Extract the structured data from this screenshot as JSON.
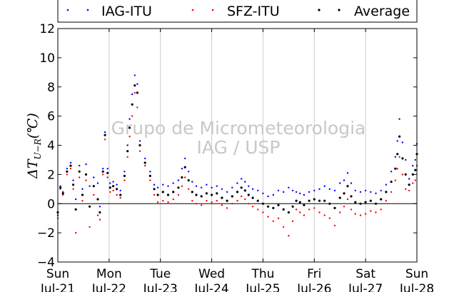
{
  "chart_data": {
    "type": "scatter",
    "ylabel": "ΔT_{U−R}(℃)",
    "ylabel_parts": {
      "delta": "ΔT",
      "subscript": "U−R",
      "unit": "(℃)"
    },
    "ylim": [
      -4,
      12
    ],
    "yticks": [
      -4,
      -2,
      0,
      2,
      4,
      6,
      8,
      10,
      12
    ],
    "ytick_labels": [
      "−4",
      "−2",
      "0",
      "2",
      "4",
      "6",
      "8",
      "10",
      "12"
    ],
    "xlim_days": [
      0,
      7
    ],
    "xticks": [
      {
        "day": "Sun",
        "date": "Jul-21"
      },
      {
        "day": "Mon",
        "date": "Jul-22"
      },
      {
        "day": "Tue",
        "date": "Jul-23"
      },
      {
        "day": "Wed",
        "date": "Jul-24"
      },
      {
        "day": "Thu",
        "date": "Jul-25"
      },
      {
        "day": "Fri",
        "date": "Jul-26"
      },
      {
        "day": "Sat",
        "date": "Jul-27"
      },
      {
        "day": "Sun",
        "date": "Jul-28"
      }
    ],
    "grid": "vertical",
    "zero_line": true,
    "legend_placement": "top",
    "watermark": [
      "Grupo de Micrometeorologia",
      "IAG / USP"
    ],
    "series": [
      {
        "name": "IAG-ITU",
        "color": "#0000ff",
        "points": [
          [
            0.0,
            -0.8
          ],
          [
            0.05,
            1.2
          ],
          [
            0.1,
            0.8
          ],
          [
            0.18,
            2.4
          ],
          [
            0.25,
            2.8
          ],
          [
            0.3,
            1.6
          ],
          [
            0.35,
            0.3
          ],
          [
            0.42,
            2.6
          ],
          [
            0.48,
            1.0
          ],
          [
            0.55,
            2.7
          ],
          [
            0.62,
            1.2
          ],
          [
            0.7,
            1.8
          ],
          [
            0.78,
            1.4
          ],
          [
            0.82,
            -0.2
          ],
          [
            0.88,
            2.4
          ],
          [
            0.92,
            4.9
          ],
          [
            0.97,
            2.4
          ],
          [
            1.02,
            1.4
          ],
          [
            1.08,
            1.5
          ],
          [
            1.15,
            1.3
          ],
          [
            1.22,
            0.9
          ],
          [
            1.3,
            2.2
          ],
          [
            1.36,
            4.0
          ],
          [
            1.4,
            5.8
          ],
          [
            1.45,
            7.5
          ],
          [
            1.5,
            8.8
          ],
          [
            1.55,
            8.2
          ],
          [
            1.6,
            4.3
          ],
          [
            1.7,
            3.1
          ],
          [
            1.8,
            2.2
          ],
          [
            1.88,
            1.3
          ],
          [
            1.95,
            1.1
          ],
          [
            2.05,
            1.3
          ],
          [
            2.15,
            1.2
          ],
          [
            2.25,
            1.4
          ],
          [
            2.35,
            1.6
          ],
          [
            2.42,
            2.4
          ],
          [
            2.48,
            3.1
          ],
          [
            2.55,
            2.2
          ],
          [
            2.62,
            1.5
          ],
          [
            2.7,
            1.2
          ],
          [
            2.8,
            1.1
          ],
          [
            2.9,
            1.3
          ],
          [
            3.0,
            1.1
          ],
          [
            3.1,
            1.2
          ],
          [
            3.2,
            1.0
          ],
          [
            3.3,
            0.8
          ],
          [
            3.4,
            1.1
          ],
          [
            3.5,
            1.4
          ],
          [
            3.58,
            1.7
          ],
          [
            3.65,
            1.5
          ],
          [
            3.72,
            1.2
          ],
          [
            3.8,
            1.0
          ],
          [
            3.9,
            0.9
          ],
          [
            4.0,
            0.7
          ],
          [
            4.1,
            0.5
          ],
          [
            4.2,
            0.6
          ],
          [
            4.3,
            0.9
          ],
          [
            4.4,
            0.8
          ],
          [
            4.5,
            1.1
          ],
          [
            4.58,
            0.9
          ],
          [
            4.65,
            0.8
          ],
          [
            4.72,
            0.7
          ],
          [
            4.8,
            0.6
          ],
          [
            4.9,
            0.8
          ],
          [
            5.0,
            0.9
          ],
          [
            5.1,
            1.0
          ],
          [
            5.2,
            1.2
          ],
          [
            5.3,
            1.0
          ],
          [
            5.4,
            0.9
          ],
          [
            5.5,
            1.4
          ],
          [
            5.58,
            1.6
          ],
          [
            5.65,
            2.1
          ],
          [
            5.72,
            1.4
          ],
          [
            5.8,
            0.9
          ],
          [
            5.9,
            0.8
          ],
          [
            6.0,
            0.9
          ],
          [
            6.1,
            0.8
          ],
          [
            6.2,
            0.7
          ],
          [
            6.3,
            0.9
          ],
          [
            6.4,
            1.3
          ],
          [
            6.5,
            2.2
          ],
          [
            6.58,
            3.2
          ],
          [
            6.62,
            4.3
          ],
          [
            6.66,
            5.8
          ],
          [
            6.72,
            4.2
          ],
          [
            6.78,
            3.0
          ],
          [
            6.85,
            1.7
          ],
          [
            6.92,
            2.6
          ],
          [
            6.97,
            3.0
          ],
          [
            7.0,
            4.1
          ]
        ]
      },
      {
        "name": "SFZ-ITU",
        "color": "#ff0000",
        "points": [
          [
            0.0,
            -1.0
          ],
          [
            0.05,
            1.0
          ],
          [
            0.1,
            0.6
          ],
          [
            0.18,
            2.0
          ],
          [
            0.25,
            2.4
          ],
          [
            0.3,
            1.0
          ],
          [
            0.35,
            -2.0
          ],
          [
            0.42,
            1.8
          ],
          [
            0.48,
            0.2
          ],
          [
            0.55,
            1.6
          ],
          [
            0.62,
            -1.6
          ],
          [
            0.7,
            0.6
          ],
          [
            0.78,
            -0.8
          ],
          [
            0.82,
            -1.1
          ],
          [
            0.88,
            2.0
          ],
          [
            0.92,
            4.4
          ],
          [
            0.97,
            1.8
          ],
          [
            1.02,
            0.8
          ],
          [
            1.08,
            0.9
          ],
          [
            1.15,
            0.6
          ],
          [
            1.22,
            0.4
          ],
          [
            1.3,
            1.6
          ],
          [
            1.36,
            3.2
          ],
          [
            1.4,
            4.6
          ],
          [
            1.45,
            6.0
          ],
          [
            1.5,
            7.6
          ],
          [
            1.55,
            6.6
          ],
          [
            1.6,
            3.6
          ],
          [
            1.7,
            2.6
          ],
          [
            1.8,
            1.6
          ],
          [
            1.88,
            0.6
          ],
          [
            1.95,
            0.1
          ],
          [
            2.05,
            0.2
          ],
          [
            2.15,
            0.1
          ],
          [
            2.25,
            0.3
          ],
          [
            2.35,
            0.6
          ],
          [
            2.42,
            1.2
          ],
          [
            2.48,
            1.8
          ],
          [
            2.55,
            1.0
          ],
          [
            2.62,
            0.2
          ],
          [
            2.7,
            0.0
          ],
          [
            2.8,
            -0.1
          ],
          [
            2.9,
            0.2
          ],
          [
            3.0,
            0.1
          ],
          [
            3.1,
            0.2
          ],
          [
            3.2,
            -0.1
          ],
          [
            3.3,
            -0.3
          ],
          [
            3.4,
            0.0
          ],
          [
            3.5,
            0.2
          ],
          [
            3.58,
            0.5
          ],
          [
            3.65,
            0.3
          ],
          [
            3.72,
            0.0
          ],
          [
            3.8,
            -0.2
          ],
          [
            3.9,
            -0.4
          ],
          [
            4.0,
            -0.6
          ],
          [
            4.1,
            -0.9
          ],
          [
            4.2,
            -1.2
          ],
          [
            4.3,
            -1.0
          ],
          [
            4.4,
            -1.6
          ],
          [
            4.5,
            -2.2
          ],
          [
            4.58,
            -1.2
          ],
          [
            4.65,
            -0.4
          ],
          [
            4.72,
            -0.6
          ],
          [
            4.8,
            -0.8
          ],
          [
            4.9,
            -0.4
          ],
          [
            5.0,
            -0.3
          ],
          [
            5.1,
            -0.6
          ],
          [
            5.2,
            -0.8
          ],
          [
            5.3,
            -1.0
          ],
          [
            5.4,
            -1.5
          ],
          [
            5.5,
            -0.6
          ],
          [
            5.58,
            -0.2
          ],
          [
            5.65,
            0.3
          ],
          [
            5.72,
            -0.4
          ],
          [
            5.8,
            -0.7
          ],
          [
            5.9,
            -0.8
          ],
          [
            6.0,
            -0.7
          ],
          [
            6.1,
            -0.5
          ],
          [
            6.2,
            -0.6
          ],
          [
            6.3,
            -0.4
          ],
          [
            6.4,
            0.2
          ],
          [
            6.5,
            0.8
          ],
          [
            6.58,
            1.6
          ],
          [
            6.62,
            2.4
          ],
          [
            6.66,
            3.2
          ],
          [
            6.72,
            2.0
          ],
          [
            6.78,
            1.0
          ],
          [
            6.85,
            0.9
          ],
          [
            6.92,
            1.4
          ],
          [
            6.97,
            1.6
          ],
          [
            7.0,
            2.6
          ]
        ]
      },
      {
        "name": "Average",
        "color": "#000000",
        "points": [
          [
            0.0,
            -0.6
          ],
          [
            0.05,
            1.1
          ],
          [
            0.1,
            0.7
          ],
          [
            0.18,
            2.2
          ],
          [
            0.25,
            2.6
          ],
          [
            0.3,
            1.3
          ],
          [
            0.35,
            -0.4
          ],
          [
            0.42,
            2.2
          ],
          [
            0.48,
            0.6
          ],
          [
            0.55,
            2.0
          ],
          [
            0.62,
            -0.2
          ],
          [
            0.7,
            1.2
          ],
          [
            0.78,
            0.3
          ],
          [
            0.82,
            -0.6
          ],
          [
            0.88,
            2.2
          ],
          [
            0.92,
            4.7
          ],
          [
            0.97,
            2.1
          ],
          [
            1.02,
            1.1
          ],
          [
            1.08,
            1.2
          ],
          [
            1.15,
            1.0
          ],
          [
            1.22,
            0.6
          ],
          [
            1.3,
            1.9
          ],
          [
            1.36,
            3.6
          ],
          [
            1.4,
            5.2
          ],
          [
            1.45,
            6.8
          ],
          [
            1.5,
            8.1
          ],
          [
            1.55,
            7.6
          ],
          [
            1.6,
            4.0
          ],
          [
            1.7,
            2.8
          ],
          [
            1.8,
            1.9
          ],
          [
            1.88,
            1.0
          ],
          [
            1.95,
            0.6
          ],
          [
            2.05,
            0.8
          ],
          [
            2.15,
            0.6
          ],
          [
            2.25,
            0.8
          ],
          [
            2.35,
            1.1
          ],
          [
            2.42,
            1.8
          ],
          [
            2.48,
            2.5
          ],
          [
            2.55,
            1.6
          ],
          [
            2.62,
            0.8
          ],
          [
            2.7,
            0.6
          ],
          [
            2.8,
            0.5
          ],
          [
            2.9,
            0.7
          ],
          [
            3.0,
            0.6
          ],
          [
            3.1,
            0.7
          ],
          [
            3.2,
            0.4
          ],
          [
            3.3,
            0.2
          ],
          [
            3.4,
            0.5
          ],
          [
            3.5,
            0.8
          ],
          [
            3.58,
            1.1
          ],
          [
            3.65,
            0.9
          ],
          [
            3.72,
            0.6
          ],
          [
            3.8,
            0.4
          ],
          [
            3.9,
            0.2
          ],
          [
            4.0,
            0.0
          ],
          [
            4.1,
            -0.2
          ],
          [
            4.2,
            -0.3
          ],
          [
            4.3,
            -0.1
          ],
          [
            4.4,
            -0.4
          ],
          [
            4.5,
            -0.6
          ],
          [
            4.58,
            -0.2
          ],
          [
            4.65,
            0.2
          ],
          [
            4.72,
            0.1
          ],
          [
            4.8,
            -0.1
          ],
          [
            4.9,
            0.2
          ],
          [
            5.0,
            0.3
          ],
          [
            5.1,
            0.2
          ],
          [
            5.2,
            0.2
          ],
          [
            5.3,
            0.0
          ],
          [
            5.4,
            -0.3
          ],
          [
            5.5,
            0.4
          ],
          [
            5.58,
            0.7
          ],
          [
            5.65,
            1.2
          ],
          [
            5.72,
            0.5
          ],
          [
            5.8,
            0.1
          ],
          [
            5.9,
            0.0
          ],
          [
            6.0,
            0.1
          ],
          [
            6.1,
            0.2
          ],
          [
            6.2,
            0.0
          ],
          [
            6.3,
            0.3
          ],
          [
            6.4,
            0.8
          ],
          [
            6.5,
            1.5
          ],
          [
            6.58,
            2.4
          ],
          [
            6.62,
            3.4
          ],
          [
            6.66,
            4.6
          ],
          [
            6.72,
            3.1
          ],
          [
            6.78,
            2.0
          ],
          [
            6.85,
            1.3
          ],
          [
            6.92,
            2.0
          ],
          [
            6.97,
            2.3
          ],
          [
            7.0,
            3.4
          ]
        ]
      }
    ]
  }
}
